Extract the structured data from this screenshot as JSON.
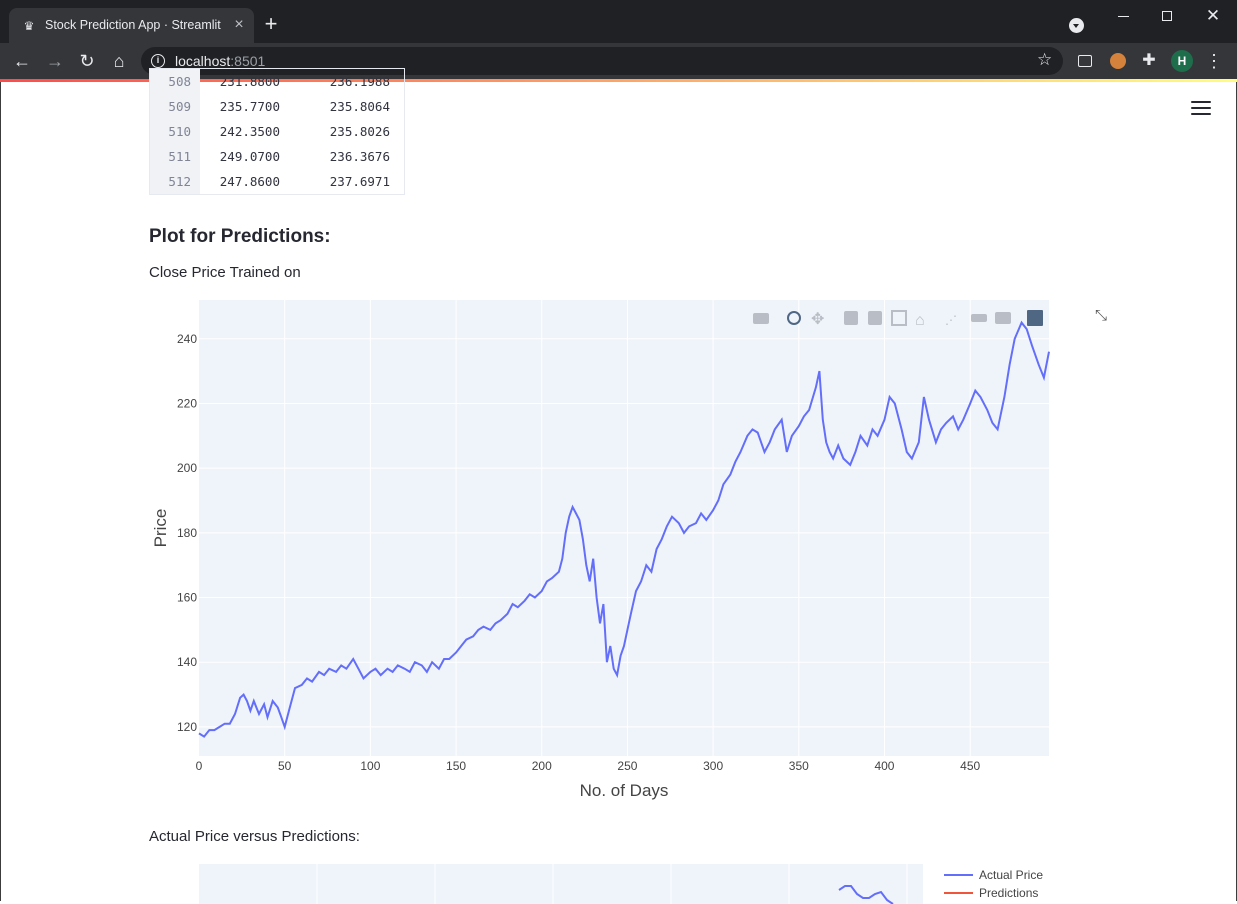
{
  "browser": {
    "tab_title": "Stock Prediction App · Streamlit",
    "url_host": "localhost",
    "url_port": ":8501",
    "avatar_letter": "H"
  },
  "table": {
    "rows": [
      {
        "index": "508",
        "actual": "231.8800",
        "pred": "236.1988"
      },
      {
        "index": "509",
        "actual": "235.7700",
        "pred": "235.8064"
      },
      {
        "index": "510",
        "actual": "242.3500",
        "pred": "235.8026"
      },
      {
        "index": "511",
        "actual": "249.0700",
        "pred": "236.3676"
      },
      {
        "index": "512",
        "actual": "247.8600",
        "pred": "237.6971"
      }
    ]
  },
  "content": {
    "plot_heading": "Plot for Predictions:",
    "subtitle_trained": "Close Price Trained on",
    "subtitle_compare": "Actual Price versus Predictions:"
  },
  "chart_data": [
    {
      "type": "line",
      "title": "",
      "xlabel": "No. of Days",
      "ylabel": "Price",
      "xlim": [
        0,
        496
      ],
      "ylim": [
        111,
        252
      ],
      "x_ticks": [
        0,
        50,
        100,
        150,
        200,
        250,
        300,
        350,
        400,
        450
      ],
      "y_ticks": [
        120,
        140,
        160,
        180,
        200,
        220,
        240
      ],
      "grid": true,
      "line_color": "#636efa",
      "series": [
        {
          "x": [
            0,
            3,
            6,
            9,
            12,
            15,
            18,
            21,
            24,
            26,
            28,
            30,
            32,
            35,
            38,
            40,
            43,
            46,
            48,
            50,
            53,
            56,
            60,
            63,
            66,
            70,
            73,
            76,
            80,
            83,
            86,
            90,
            93,
            96,
            100,
            103,
            106,
            110,
            113,
            116,
            120,
            123,
            126,
            130,
            133,
            136,
            140,
            143,
            146,
            150,
            153,
            156,
            160,
            163,
            166,
            170,
            173,
            176,
            180,
            183,
            186,
            190,
            193,
            196,
            200,
            203,
            206,
            210,
            212,
            214,
            216,
            218,
            220,
            222,
            224,
            226,
            228,
            230,
            232,
            234,
            236,
            238,
            240,
            242,
            244,
            246,
            248,
            250,
            252,
            255,
            258,
            261,
            264,
            267,
            270,
            273,
            276,
            280,
            283,
            286,
            290,
            293,
            296,
            300,
            303,
            306,
            310,
            313,
            316,
            320,
            323,
            326,
            330,
            333,
            336,
            340,
            343,
            346,
            350,
            353,
            356,
            360,
            362,
            364,
            366,
            368,
            370,
            373,
            376,
            380,
            383,
            386,
            390,
            393,
            396,
            400,
            403,
            406,
            410,
            413,
            416,
            420,
            423,
            426,
            430,
            433,
            436,
            440,
            443,
            446,
            450,
            453,
            456,
            460,
            463,
            466,
            470,
            473,
            476,
            480,
            483,
            486,
            490,
            493,
            496
          ],
          "y": [
            118,
            117,
            119,
            119,
            120,
            121,
            121,
            124,
            129,
            130,
            128,
            125,
            128,
            124,
            127,
            123,
            128,
            126,
            123,
            120,
            126,
            132,
            133,
            135,
            134,
            137,
            136,
            138,
            137,
            139,
            138,
            141,
            138,
            135,
            137,
            138,
            136,
            138,
            137,
            139,
            138,
            137,
            140,
            139,
            137,
            140,
            138,
            141,
            141,
            143,
            145,
            147,
            148,
            150,
            151,
            150,
            152,
            153,
            155,
            158,
            157,
            159,
            161,
            160,
            162,
            165,
            166,
            168,
            172,
            180,
            185,
            188,
            186,
            184,
            178,
            170,
            165,
            172,
            160,
            152,
            158,
            140,
            145,
            138,
            136,
            142,
            145,
            150,
            155,
            162,
            165,
            170,
            168,
            175,
            178,
            182,
            185,
            183,
            180,
            182,
            183,
            186,
            184,
            187,
            190,
            195,
            198,
            202,
            205,
            210,
            212,
            211,
            205,
            208,
            212,
            215,
            205,
            210,
            213,
            216,
            218,
            225,
            230,
            215,
            208,
            205,
            203,
            207,
            203,
            201,
            205,
            210,
            207,
            212,
            210,
            215,
            222,
            220,
            212,
            205,
            203,
            208,
            222,
            215,
            208,
            212,
            214,
            216,
            212,
            215,
            220,
            224,
            222,
            218,
            214,
            212,
            222,
            232,
            240,
            245,
            243,
            238,
            232,
            228,
            236
          ]
        }
      ]
    },
    {
      "type": "line",
      "title": "",
      "series": [
        {
          "name": "Actual Price",
          "color": "#636efa"
        },
        {
          "name": "Predictions",
          "color": "#ef553b"
        }
      ],
      "legend": "top-right"
    }
  ]
}
